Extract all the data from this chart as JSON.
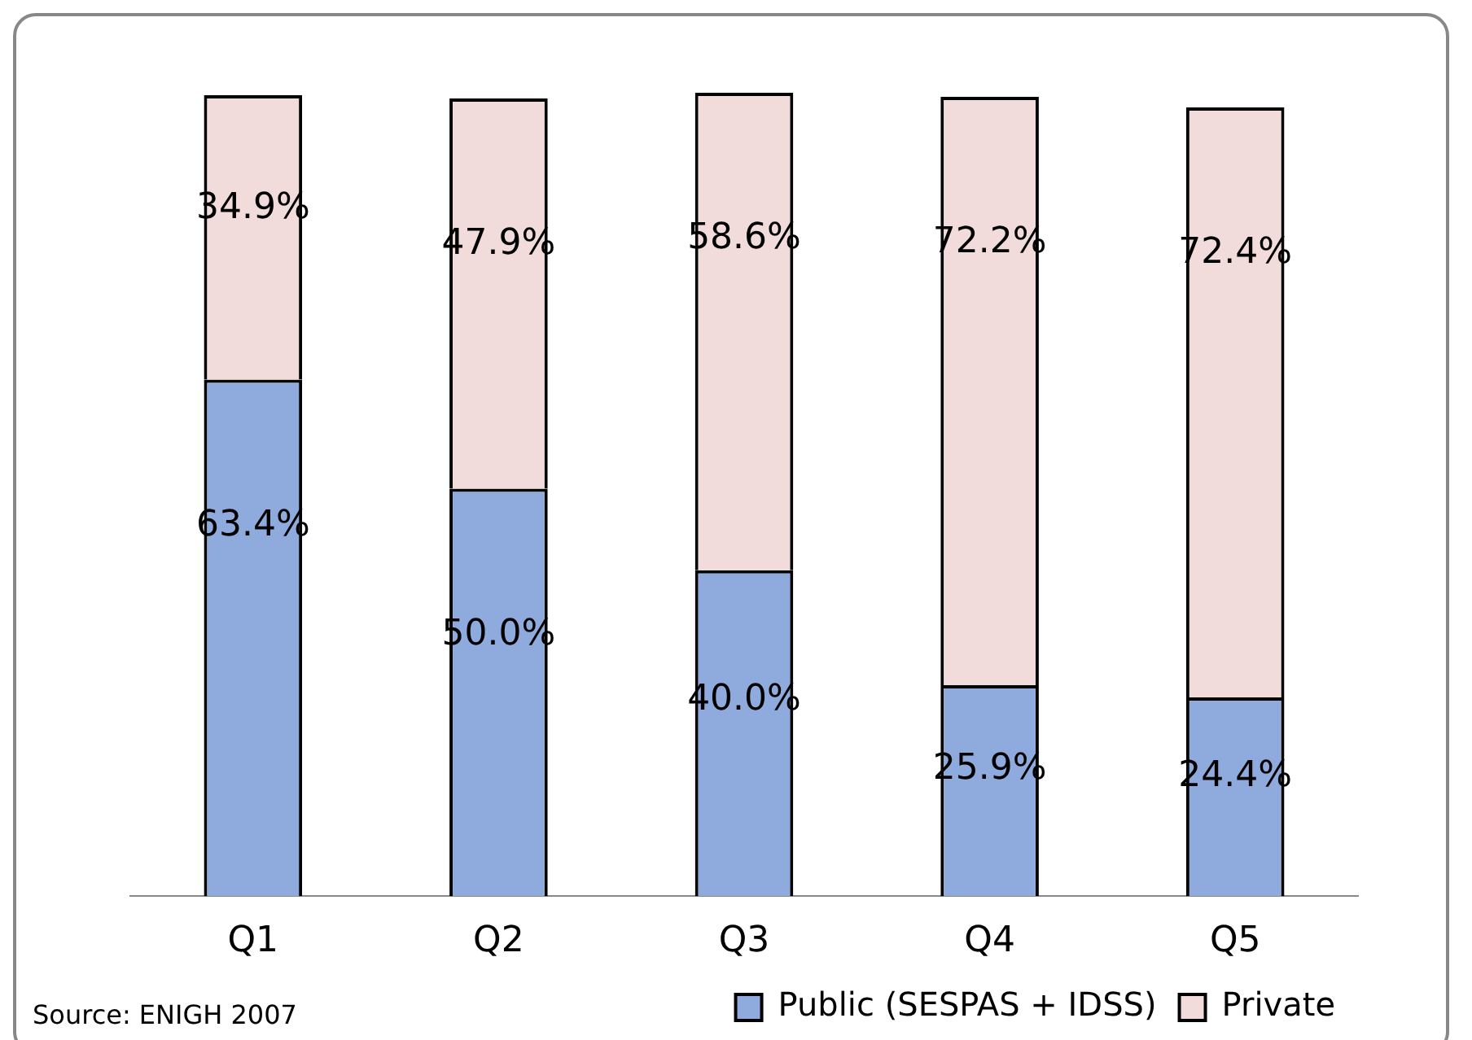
{
  "chart_data": {
    "type": "bar",
    "stacked": true,
    "categories": [
      "Q1",
      "Q2",
      "Q3",
      "Q4",
      "Q5"
    ],
    "series": [
      {
        "name": "Public (SESPAS + IDSS)",
        "color": "#8faadc",
        "values": [
          63.4,
          50.0,
          40.0,
          25.9,
          24.4
        ],
        "value_labels": [
          "63.4%",
          "50.0%",
          "40.0%",
          "25.9%",
          "24.4%"
        ]
      },
      {
        "name": "Private",
        "color": "#f2dcdb",
        "values": [
          34.9,
          47.9,
          58.6,
          72.2,
          72.4
        ],
        "value_labels": [
          "34.9%",
          "47.9%",
          "58.6%",
          "72.2%",
          "72.4%"
        ]
      }
    ],
    "ylim": [
      0,
      100
    ],
    "grid": false,
    "legend": "bottom",
    "annotations": [
      "Source: ENIGH 2007"
    ]
  }
}
